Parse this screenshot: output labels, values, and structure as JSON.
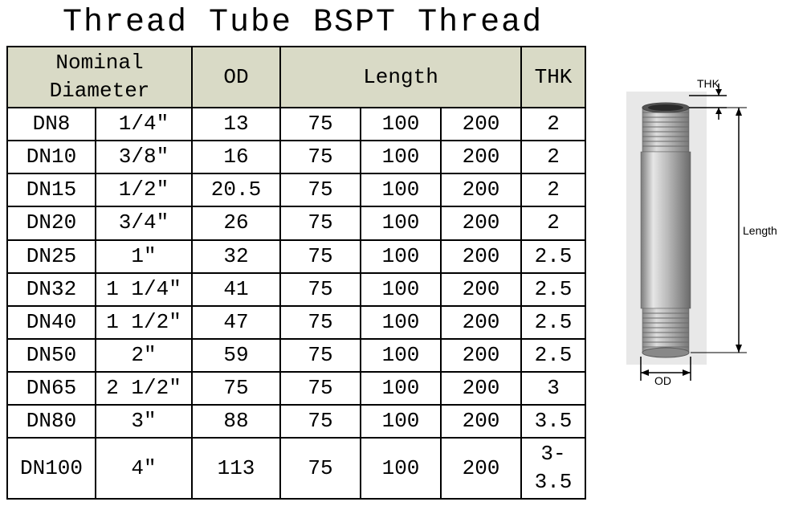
{
  "title": "Thread Tube BSPT Thread",
  "table": {
    "header": {
      "nominal_diameter": "Nominal Diameter",
      "od": "OD",
      "length": "Length",
      "thk": "THK"
    },
    "col_widths": {
      "dn": 110,
      "size": 120,
      "od": 110,
      "len": 100,
      "thk": 80
    },
    "header_bg": "#d9dac6",
    "border_color": "#000000",
    "font_size": 26,
    "rows": [
      {
        "dn": "DN8",
        "size": "1/4″",
        "od": "13",
        "len1": "75",
        "len2": "100",
        "len3": "200",
        "thk": "2"
      },
      {
        "dn": "DN10",
        "size": "3/8″",
        "od": "16",
        "len1": "75",
        "len2": "100",
        "len3": "200",
        "thk": "2"
      },
      {
        "dn": "DN15",
        "size": "1/2″",
        "od": "20.5",
        "len1": "75",
        "len2": "100",
        "len3": "200",
        "thk": "2"
      },
      {
        "dn": "DN20",
        "size": "3/4″",
        "od": "26",
        "len1": "75",
        "len2": "100",
        "len3": "200",
        "thk": "2"
      },
      {
        "dn": "DN25",
        "size": "1″",
        "od": "32",
        "len1": "75",
        "len2": "100",
        "len3": "200",
        "thk": "2.5"
      },
      {
        "dn": "DN32",
        "size": "1 1/4″",
        "od": "41",
        "len1": "75",
        "len2": "100",
        "len3": "200",
        "thk": "2.5"
      },
      {
        "dn": "DN40",
        "size": "1 1/2″",
        "od": "47",
        "len1": "75",
        "len2": "100",
        "len3": "200",
        "thk": "2.5"
      },
      {
        "dn": "DN50",
        "size": "2″",
        "od": "59",
        "len1": "75",
        "len2": "100",
        "len3": "200",
        "thk": "2.5"
      },
      {
        "dn": "DN65",
        "size": "2 1/2″",
        "od": "75",
        "len1": "75",
        "len2": "100",
        "len3": "200",
        "thk": "3"
      },
      {
        "dn": "DN80",
        "size": "3″",
        "od": "88",
        "len1": "75",
        "len2": "100",
        "len3": "200",
        "thk": "3.5"
      },
      {
        "dn": "DN100",
        "size": "4″",
        "od": "113",
        "len1": "75",
        "len2": "100",
        "len3": "200",
        "thk": "3-3.5"
      }
    ]
  },
  "diagram": {
    "labels": {
      "thk": "THK",
      "length": "Length",
      "od": "OD"
    },
    "pipe": {
      "body_gradient": [
        "#8c8c8c",
        "#e6e6e6",
        "#b8b8b8",
        "#7a7a7a"
      ],
      "thread_color": "#9a9a9a",
      "outline": "#5a5a5a",
      "dim_line_color": "#000000"
    }
  },
  "colors": {
    "background": "#ffffff",
    "text": "#000000"
  }
}
